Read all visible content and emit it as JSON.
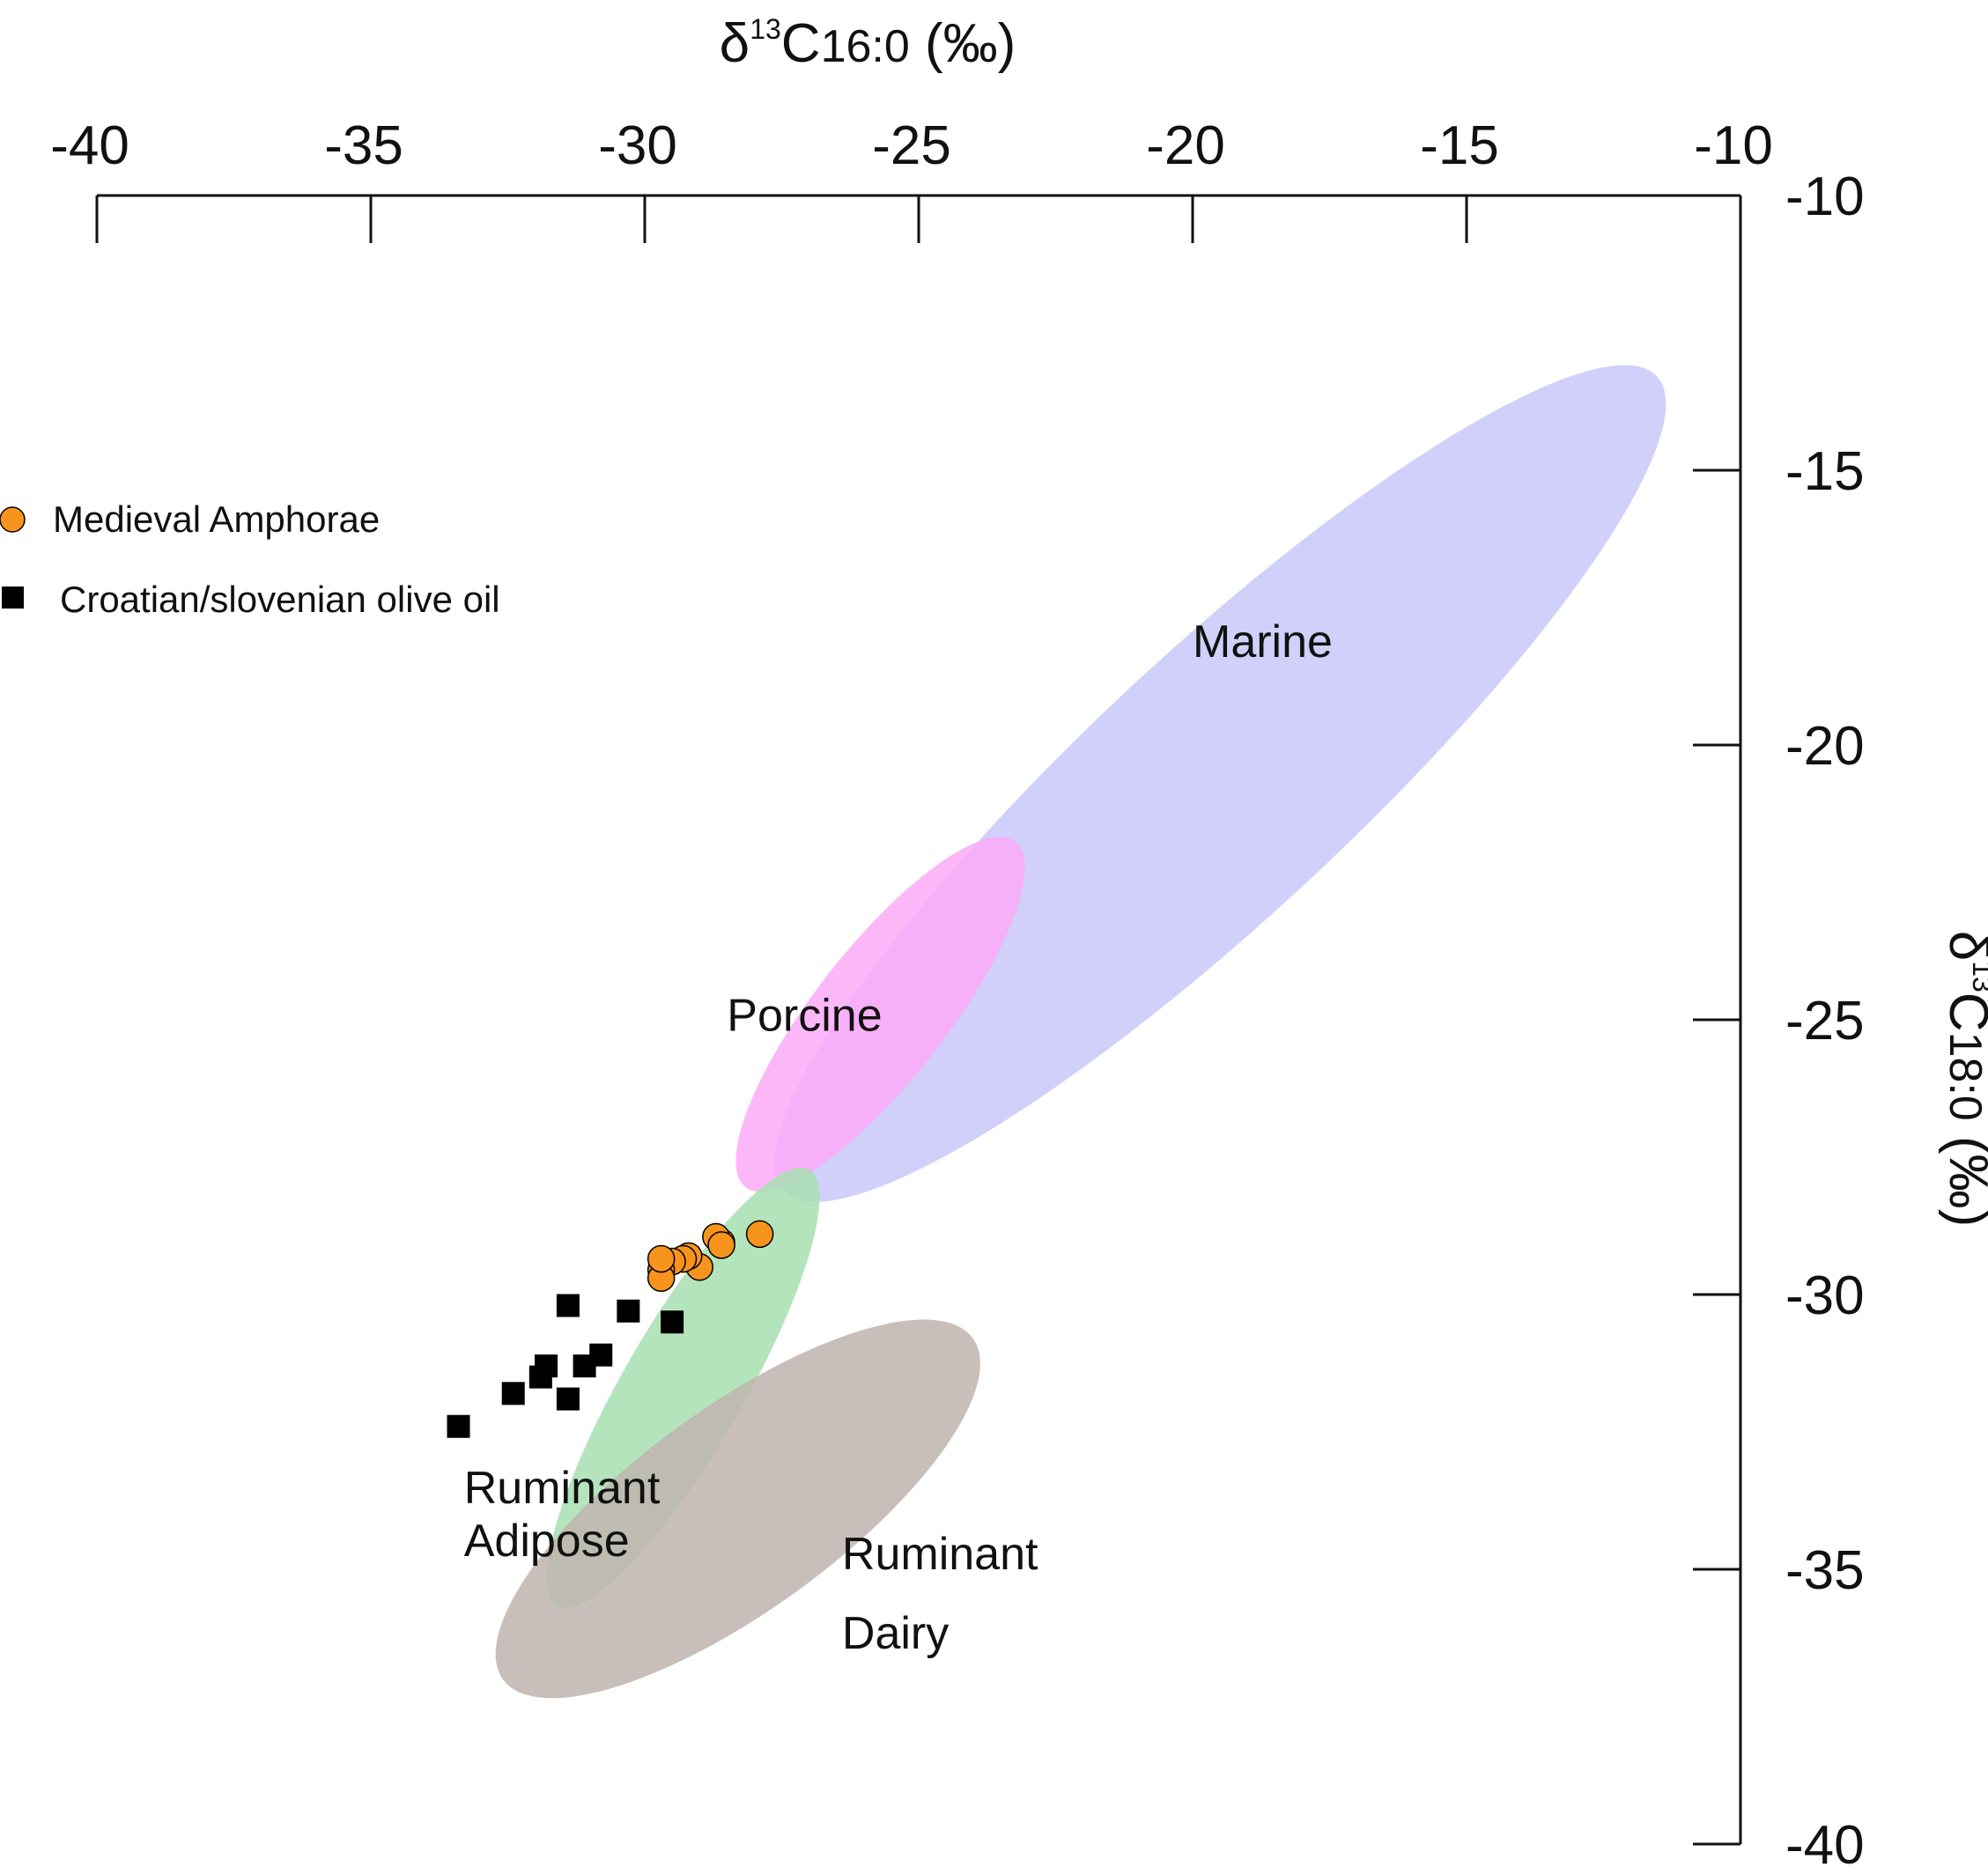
{
  "chart_data": {
    "type": "scatter",
    "x_axis": {
      "label_base": "δ",
      "label_sup": "13",
      "label_main": "C",
      "label_sub": "16:0",
      "label_unit": " (‰)",
      "range": [
        -40,
        -10
      ],
      "ticks": [
        -40,
        -35,
        -30,
        -25,
        -20,
        -15,
        -10
      ],
      "position": "top"
    },
    "y_axis": {
      "label_base": "δ",
      "label_sup": "13",
      "label_main": "C",
      "label_sub": "18:0",
      "label_unit": " (‰)",
      "range": [
        -40,
        -10
      ],
      "ticks": [
        -10,
        -15,
        -20,
        -25,
        -30,
        -35,
        -40
      ],
      "position": "right",
      "inverted": true
    },
    "grid": false,
    "legend_placement": "top-left",
    "regions": [
      {
        "name": "Marine",
        "label_lines": [
          "Marine"
        ],
        "color": "#c8c8fa",
        "center": [
          -19.5,
          -20.7
        ],
        "semi_major": 10.9,
        "semi_minor": 2.4,
        "angle_deg": 43,
        "label_at": [
          -20,
          -18.4
        ]
      },
      {
        "name": "Porcine",
        "label_lines": [
          "Porcine"
        ],
        "color": "#fcaaf7",
        "center": [
          -25.7,
          -24.9
        ],
        "semi_major": 4.0,
        "semi_minor": 1.2,
        "angle_deg": 52,
        "label_at": [
          -28.5,
          -25.2
        ]
      },
      {
        "name": "Ruminant Adipose",
        "label_lines": [
          "Ruminant",
          "Adipose"
        ],
        "color": "#a7dfb0",
        "center": [
          -29.3,
          -31.7
        ],
        "semi_major": 4.6,
        "semi_minor": 1.1,
        "angle_deg": 60,
        "label_at": [
          -33.3,
          -33.8
        ]
      },
      {
        "name": "Ruminant Dairy",
        "label_lines": [
          "Ruminant",
          "Dairy"
        ],
        "color": "#c0b4ae",
        "center": [
          -28.3,
          -33.9
        ],
        "semi_major": 5.3,
        "semi_minor": 1.85,
        "angle_deg": 36,
        "label_at": [
          -26.4,
          -35.0
        ]
      }
    ],
    "series": [
      {
        "name": "Medieval Amphorae",
        "marker": "circle",
        "color": "#f7941d",
        "points": [
          [
            -27.9,
            -28.9
          ],
          [
            -28.6,
            -29.05
          ],
          [
            -28.7,
            -28.95
          ],
          [
            -28.6,
            -29.1
          ],
          [
            -29.0,
            -29.5
          ],
          [
            -29.2,
            -29.3
          ],
          [
            -29.3,
            -29.35
          ],
          [
            -29.5,
            -29.4
          ],
          [
            -29.7,
            -29.55
          ],
          [
            -29.7,
            -29.7
          ],
          [
            -29.7,
            -29.35
          ]
        ]
      },
      {
        "name": "Croatian/slovenian olive oil",
        "marker": "square",
        "color": "#000000",
        "points": [
          [
            -31.4,
            -30.2
          ],
          [
            -30.3,
            -30.3
          ],
          [
            -29.5,
            -30.5
          ],
          [
            -30.8,
            -31.1
          ],
          [
            -31.1,
            -31.3
          ],
          [
            -31.8,
            -31.3
          ],
          [
            -31.9,
            -31.5
          ],
          [
            -32.4,
            -31.8
          ],
          [
            -31.4,
            -31.9
          ],
          [
            -33.4,
            -32.4
          ]
        ]
      }
    ]
  }
}
